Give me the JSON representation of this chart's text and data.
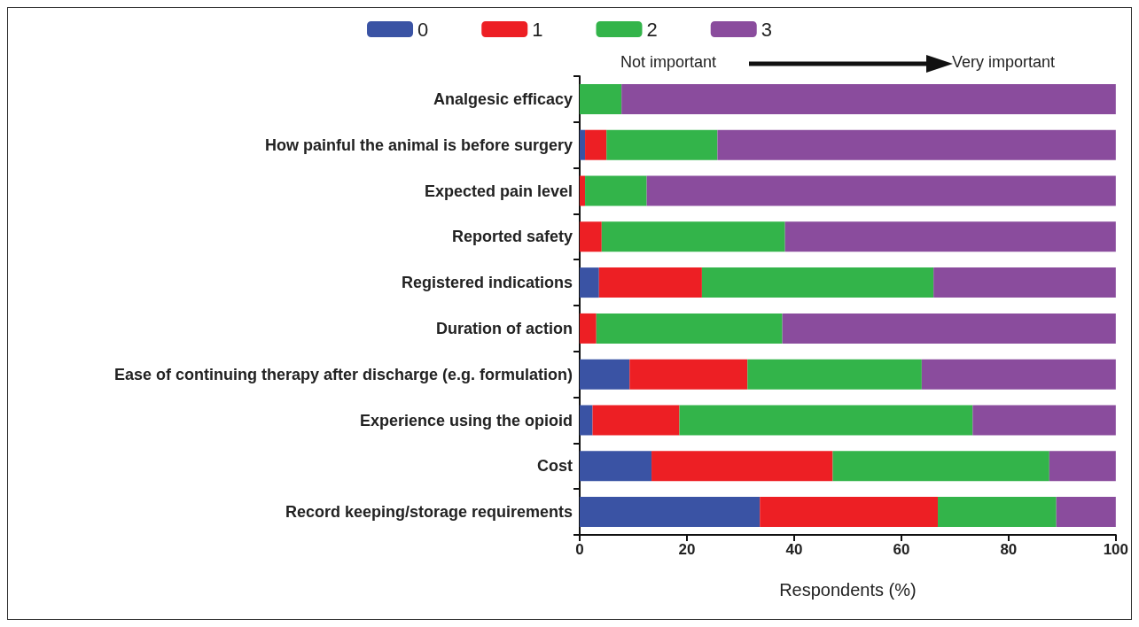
{
  "chart_data": {
    "type": "bar",
    "orientation": "horizontal",
    "stacked": true,
    "xlabel": "Respondents (%)",
    "annotations": [
      "Not important",
      "Very important"
    ],
    "categories": [
      "Analgesic efficacy",
      "How painful the animal is before surgery",
      "Expected pain level",
      "Reported safety",
      "Registered indications",
      "Duration of action",
      "Ease of continuing therapy after discharge (e.g. formulation)",
      "Experience using the opioid",
      "Cost",
      "Record keeping/storage requirements"
    ],
    "series": [
      {
        "name": "0",
        "color": "#3a53a4",
        "values": [
          0,
          1.0,
          0,
          0,
          3.6,
          0,
          9.3,
          2.4,
          13.4,
          33.6
        ]
      },
      {
        "name": "1",
        "color": "#ed1f24",
        "values": [
          0,
          4.0,
          1.0,
          4.1,
          19.2,
          3.1,
          22.0,
          16.2,
          33.8,
          33.2
        ]
      },
      {
        "name": "2",
        "color": "#33b44a",
        "values": [
          7.8,
          20.7,
          11.5,
          34.2,
          43.2,
          34.7,
          32.5,
          54.7,
          40.4,
          22.1
        ]
      },
      {
        "name": "3",
        "color": "#8a4c9d",
        "values": [
          92.2,
          74.3,
          87.5,
          61.7,
          34.0,
          62.2,
          36.2,
          26.7,
          12.4,
          11.1
        ]
      }
    ],
    "xlim": [
      0,
      100
    ],
    "xticks": [
      0,
      20,
      40,
      60,
      80,
      100
    ],
    "grid": false,
    "legend": "top"
  }
}
